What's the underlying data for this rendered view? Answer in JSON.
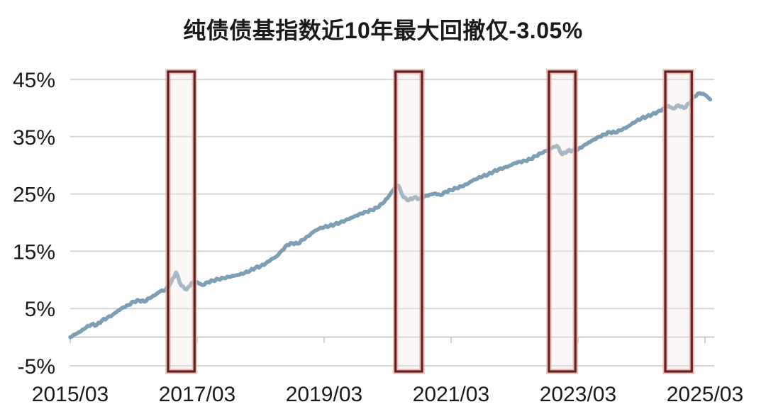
{
  "title": "纯债债基指数近10年最大回撤仅-3.05%",
  "chart_data": {
    "type": "line",
    "title": "纯债债基指数近10年最大回撤仅-3.05%",
    "xlabel": "",
    "ylabel": "",
    "x_start": "2015/03",
    "x_end": "2025/04",
    "x_interval": "monthly",
    "x_ticks": [
      {
        "m": 0,
        "label": "2015/03"
      },
      {
        "m": 24,
        "label": "2017/03"
      },
      {
        "m": 48,
        "label": "2019/03"
      },
      {
        "m": 72,
        "label": "2021/03"
      },
      {
        "m": 96,
        "label": "2023/03"
      },
      {
        "m": 120,
        "label": "2025/03"
      }
    ],
    "y_ticks": [
      {
        "v": 45,
        "label": "45%"
      },
      {
        "v": 35,
        "label": "35%"
      },
      {
        "v": 25,
        "label": "25%"
      },
      {
        "v": 15,
        "label": "15%"
      },
      {
        "v": 5,
        "label": "5%"
      },
      {
        "v": -5,
        "label": "-5%"
      }
    ],
    "ylim": [
      -5,
      45
    ],
    "grid": "horizontal",
    "legend": "none",
    "axis_cross_value": 0,
    "series": [
      {
        "name": "纯债债基指数",
        "values": [
          0.0,
          0.5,
          1.0,
          1.7,
          2.2,
          2.1,
          2.9,
          3.4,
          3.9,
          4.6,
          5.2,
          5.6,
          6.2,
          6.4,
          6.2,
          6.8,
          7.3,
          8.0,
          8.2,
          9.4,
          11.3,
          9.0,
          8.3,
          9.5,
          9.6,
          9.1,
          9.6,
          9.9,
          10.1,
          10.3,
          10.5,
          10.7,
          10.9,
          11.2,
          11.6,
          12.1,
          12.4,
          12.9,
          13.6,
          14.1,
          15.1,
          16.1,
          16.4,
          16.3,
          17.0,
          17.6,
          18.4,
          18.9,
          19.2,
          19.4,
          19.7,
          20.0,
          20.4,
          20.8,
          21.2,
          21.6,
          21.9,
          22.2,
          22.6,
          23.3,
          24.3,
          25.6,
          26.5,
          24.4,
          23.9,
          24.4,
          24.2,
          24.6,
          24.9,
          25.1,
          24.8,
          25.4,
          25.7,
          26.0,
          26.3,
          26.7,
          27.3,
          27.7,
          28.1,
          28.4,
          28.9,
          29.3,
          29.6,
          29.9,
          30.4,
          30.6,
          30.8,
          31.1,
          31.6,
          32.1,
          32.5,
          33.0,
          33.4,
          31.9,
          32.5,
          32.6,
          32.8,
          33.4,
          34.0,
          34.5,
          35.0,
          35.4,
          35.8,
          35.7,
          36.1,
          36.5,
          37.1,
          37.7,
          38.2,
          38.5,
          38.9,
          39.3,
          39.8,
          40.4,
          39.9,
          40.5,
          40.0,
          40.8,
          42.0,
          42.6,
          42.3,
          41.5
        ]
      }
    ],
    "annotations": {
      "max_drawdown_label": "-3.05%",
      "highlight_boxes": [
        {
          "from": "2016/09",
          "to": "2017/02"
        },
        {
          "from": "2020/04",
          "to": "2020/09"
        },
        {
          "from": "2022/09",
          "to": "2023/02"
        },
        {
          "from": "2024/07",
          "to": "2024/12"
        }
      ]
    },
    "colors": {
      "line": "#6b91a8",
      "grid": "#d6d6d6",
      "axis": "#c4c4c4",
      "box_stroke": "#5d2322",
      "box_glow": "#eaaaa5",
      "box_fill": "#f6e8e8",
      "text": "#1a1a1a",
      "background": "#ffffff"
    }
  }
}
